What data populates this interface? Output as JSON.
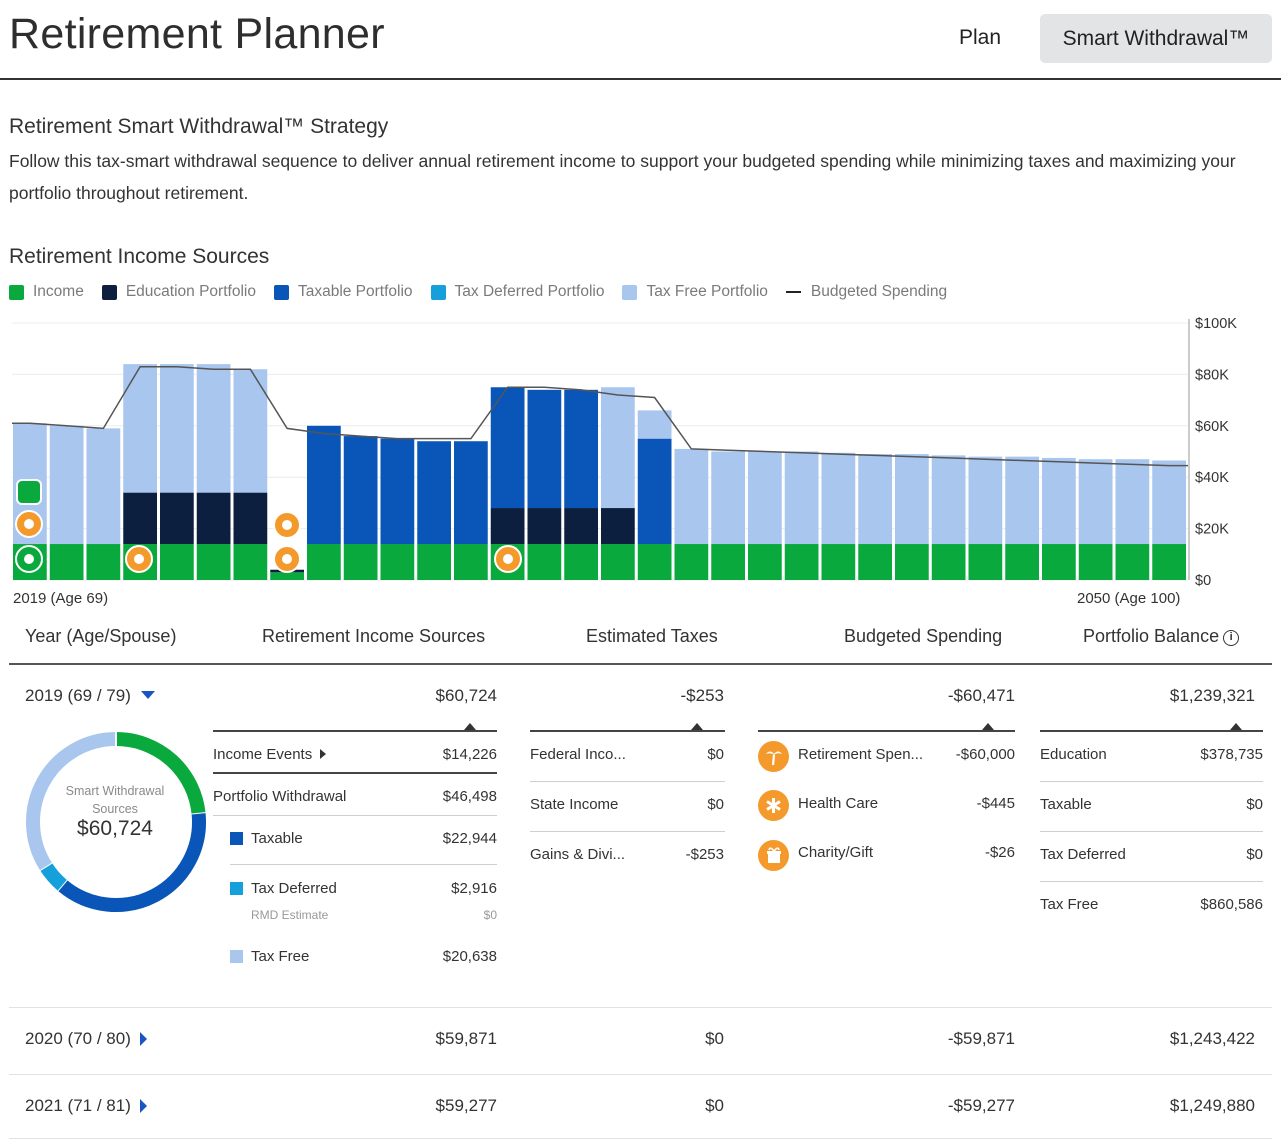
{
  "header": {
    "title": "Retirement Planner",
    "nav_plan": "Plan",
    "nav_smart": "Smart Withdrawal™"
  },
  "strategy": {
    "title": "Retirement Smart Withdrawal™ Strategy",
    "description": "Follow this tax-smart withdrawal sequence to deliver annual retirement income to support your budgeted spending while minimizing taxes and maximizing your portfolio throughout retirement."
  },
  "sources_title": "Retirement Income Sources",
  "legend": [
    {
      "label": "Income",
      "color": "#0aa93e"
    },
    {
      "label": "Education Portfolio",
      "color": "#0d1f3f"
    },
    {
      "label": "Taxable Portfolio",
      "color": "#0a56b8"
    },
    {
      "label": "Tax Deferred Portfolio",
      "color": "#15a0dc"
    },
    {
      "label": "Tax Free Portfolio",
      "color": "#a8c6ee"
    },
    {
      "label": "Budgeted Spending",
      "color": "#222222"
    }
  ],
  "chart_data": {
    "type": "bar",
    "stacked": true,
    "ylim": [
      0,
      100000
    ],
    "y_ticks": [
      "$100K",
      "$80K",
      "$60K",
      "$40K",
      "$20K",
      "$0"
    ],
    "x_start_label": "2019 (Age 69)",
    "x_end_label": "2050 (Age 100)",
    "categories": [
      "2019",
      "2020",
      "2021",
      "2022",
      "2023",
      "2024",
      "2025",
      "2026",
      "2027",
      "2028",
      "2029",
      "2030",
      "2031",
      "2032",
      "2033",
      "2034",
      "2035",
      "2036",
      "2037",
      "2038",
      "2039",
      "2040",
      "2041",
      "2042",
      "2043",
      "2044",
      "2045",
      "2046",
      "2047",
      "2048",
      "2049",
      "2050"
    ],
    "series": [
      {
        "name": "Income",
        "color": "#0aa93e",
        "values": [
          14000,
          14000,
          14000,
          14000,
          14000,
          14000,
          14000,
          3000,
          14000,
          14000,
          14000,
          14000,
          14000,
          14000,
          14000,
          14000,
          14000,
          14000,
          14000,
          14000,
          14000,
          14000,
          14000,
          14000,
          14000,
          14000,
          14000,
          14000,
          14000,
          14000,
          14000,
          14000
        ]
      },
      {
        "name": "Education Portfolio",
        "color": "#0d1f3f",
        "values": [
          0,
          0,
          0,
          20000,
          20000,
          20000,
          20000,
          1000,
          0,
          0,
          0,
          0,
          0,
          14000,
          14000,
          14000,
          14000,
          0,
          0,
          0,
          0,
          0,
          0,
          0,
          0,
          0,
          0,
          0,
          0,
          0,
          0,
          0
        ]
      },
      {
        "name": "Taxable Portfolio",
        "color": "#0a56b8",
        "values": [
          0,
          0,
          0,
          0,
          0,
          0,
          0,
          0,
          46000,
          42000,
          41000,
          40000,
          40000,
          47000,
          46000,
          46000,
          0,
          41000,
          0,
          0,
          0,
          0,
          0,
          0,
          0,
          0,
          0,
          0,
          0,
          0,
          0,
          0
        ]
      },
      {
        "name": "Tax Deferred Portfolio",
        "color": "#15a0dc",
        "values": [
          0,
          0,
          0,
          0,
          0,
          0,
          0,
          0,
          0,
          0,
          0,
          0,
          0,
          0,
          0,
          0,
          0,
          0,
          0,
          0,
          0,
          0,
          0,
          0,
          0,
          0,
          0,
          0,
          0,
          0,
          0,
          0
        ]
      },
      {
        "name": "Tax Free Portfolio",
        "color": "#a8c6ee",
        "values": [
          47000,
          46000,
          45000,
          50000,
          50000,
          50000,
          48000,
          0,
          0,
          0,
          0,
          0,
          0,
          0,
          0,
          0,
          47000,
          11000,
          37000,
          36000,
          36000,
          36000,
          35500,
          35000,
          35000,
          34500,
          34000,
          34000,
          33500,
          33000,
          33000,
          32500
        ]
      }
    ],
    "budgeted_spending": [
      61000,
      60000,
      59000,
      83000,
      83000,
      82000,
      82000,
      59000,
      57000,
      56000,
      55000,
      55000,
      55000,
      75000,
      75000,
      74000,
      72000,
      71000,
      51000,
      50500,
      50000,
      49500,
      49000,
      48500,
      48000,
      47500,
      47000,
      46500,
      46000,
      45500,
      45000,
      44500
    ]
  },
  "table": {
    "headers": {
      "year": "Year (Age/Spouse)",
      "sources": "Retirement Income Sources",
      "taxes": "Estimated Taxes",
      "spending": "Budgeted Spending",
      "balance": "Portfolio Balance"
    },
    "expanded_row": {
      "year": "2019 (69 / 79)",
      "sources": "$60,724",
      "taxes": "-$253",
      "spending": "-$60,471",
      "balance": "$1,239,321",
      "donut": {
        "label_line1": "Smart Withdrawal",
        "label_line2": "Sources",
        "value": "$60,724",
        "segments": [
          {
            "name": "Income",
            "value": 14226,
            "color": "#0aa93e"
          },
          {
            "name": "Taxable",
            "value": 22944,
            "color": "#0a56b8"
          },
          {
            "name": "Tax Deferred",
            "value": 2916,
            "color": "#15a0dc"
          },
          {
            "name": "Tax Free",
            "value": 20638,
            "color": "#a8c6ee"
          }
        ]
      },
      "sources_detail": {
        "income_events_label": "Income Events",
        "income_events_value": "$14,226",
        "withdrawal_label": "Portfolio Withdrawal",
        "withdrawal_value": "$46,498",
        "taxable_label": "Taxable",
        "taxable_value": "$22,944",
        "deferred_label": "Tax Deferred",
        "deferred_value": "$2,916",
        "rmd_label": "RMD Estimate",
        "rmd_value": "$0",
        "taxfree_label": "Tax Free",
        "taxfree_value": "$20,638"
      },
      "taxes_detail": [
        {
          "label": "Federal Inco...",
          "value": "$0"
        },
        {
          "label": "State Income",
          "value": "$0"
        },
        {
          "label": "Gains & Divi...",
          "value": "-$253"
        }
      ],
      "spending_detail": [
        {
          "label": "Retirement Spen...",
          "value": "-$60,000",
          "icon": "palm-tree-icon"
        },
        {
          "label": "Health Care",
          "value": "-$445",
          "icon": "medical-icon"
        },
        {
          "label": "Charity/Gift",
          "value": "-$26",
          "icon": "gift-icon"
        }
      ],
      "balance_detail": [
        {
          "label": "Education",
          "value": "$378,735"
        },
        {
          "label": "Taxable",
          "value": "$0"
        },
        {
          "label": "Tax Deferred",
          "value": "$0"
        },
        {
          "label": "Tax Free",
          "value": "$860,586"
        }
      ]
    },
    "rows": [
      {
        "year": "2020 (70 / 80)",
        "sources": "$59,871",
        "taxes": "$0",
        "spending": "-$59,871",
        "balance": "$1,243,422"
      },
      {
        "year": "2021 (71 / 81)",
        "sources": "$59,277",
        "taxes": "$0",
        "spending": "-$59,277",
        "balance": "$1,249,880"
      }
    ]
  }
}
